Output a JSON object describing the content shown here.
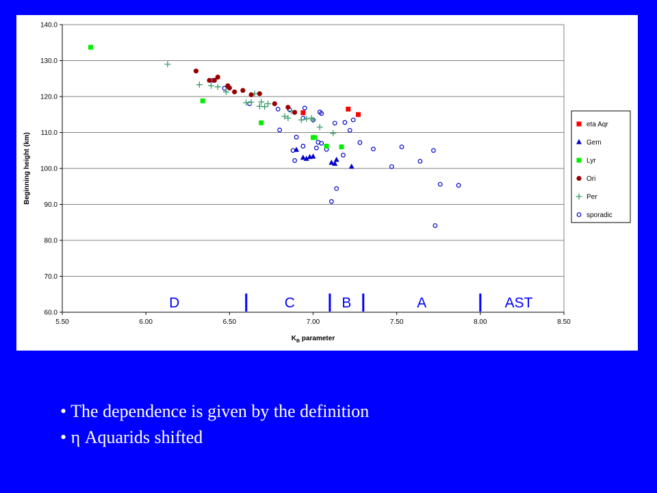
{
  "chart_data": {
    "type": "scatter",
    "title": "",
    "xlabel_main": "K",
    "xlabel_sub": "B",
    "xlabel_rest": " parameter",
    "ylabel": "Beginning height (km)",
    "xlim": [
      5.5,
      8.5
    ],
    "ylim": [
      60.0,
      140.0
    ],
    "x_ticks": [
      "5.50",
      "6.00",
      "6.50",
      "7.00",
      "7.50",
      "8.00",
      "8.50"
    ],
    "y_ticks": [
      "60.0",
      "70.0",
      "80.0",
      "90.0",
      "100.0",
      "110.0",
      "120.0",
      "130.0",
      "140.0"
    ],
    "grid": "horizontal",
    "legend_position": "right",
    "series": [
      {
        "name": "eta Aqr",
        "marker": "square",
        "color": "#ff0000",
        "points": [
          [
            7.21,
            116.5
          ],
          [
            7.27,
            115.0
          ],
          [
            6.94,
            115.5
          ]
        ]
      },
      {
        "name": "Gem",
        "marker": "triangle",
        "color": "#0000cc",
        "points": [
          [
            6.9,
            105.2
          ],
          [
            6.94,
            103.0
          ],
          [
            6.96,
            102.7
          ],
          [
            6.98,
            103.2
          ],
          [
            7.0,
            103.3
          ],
          [
            7.11,
            101.6
          ],
          [
            7.13,
            101.3
          ],
          [
            7.14,
            102.4
          ],
          [
            7.23,
            100.5
          ]
        ]
      },
      {
        "name": "Lyr",
        "marker": "square",
        "color": "#00ee00",
        "points": [
          [
            5.67,
            133.7
          ],
          [
            6.34,
            118.8
          ],
          [
            6.69,
            112.7
          ],
          [
            7.0,
            108.6
          ],
          [
            7.01,
            108.6
          ],
          [
            7.08,
            106.2
          ],
          [
            7.17,
            106.0
          ]
        ]
      },
      {
        "name": "Ori",
        "marker": "circle",
        "color": "#990000",
        "points": [
          [
            6.3,
            127.1
          ],
          [
            6.38,
            124.5
          ],
          [
            6.41,
            124.5
          ],
          [
            6.43,
            125.4
          ],
          [
            6.49,
            123.0
          ],
          [
            6.5,
            122.4
          ],
          [
            6.53,
            121.3
          ],
          [
            6.58,
            121.7
          ],
          [
            6.63,
            120.5
          ],
          [
            6.68,
            120.8
          ],
          [
            6.77,
            118.0
          ],
          [
            6.85,
            117.0
          ],
          [
            6.89,
            115.6
          ]
        ]
      },
      {
        "name": "Per",
        "marker": "plus",
        "color": "#339966",
        "points": [
          [
            6.13,
            129.0
          ],
          [
            6.32,
            123.3
          ],
          [
            6.39,
            123.0
          ],
          [
            6.43,
            122.7
          ],
          [
            6.48,
            121.3
          ],
          [
            6.6,
            118.3
          ],
          [
            6.63,
            118.4
          ],
          [
            6.65,
            120.8
          ],
          [
            6.68,
            117.3
          ],
          [
            6.69,
            118.5
          ],
          [
            6.71,
            117.2
          ],
          [
            6.73,
            118.0
          ],
          [
            6.83,
            114.5
          ],
          [
            6.85,
            114.0
          ],
          [
            6.87,
            116.0
          ],
          [
            6.93,
            113.5
          ],
          [
            6.96,
            113.8
          ],
          [
            6.99,
            114.0
          ],
          [
            7.0,
            113.5
          ],
          [
            7.04,
            111.5
          ],
          [
            7.12,
            109.8
          ]
        ]
      },
      {
        "name": "sporadic",
        "marker": "open-circle",
        "color": "#0000cc",
        "points": [
          [
            6.4,
            124.5
          ],
          [
            6.47,
            122.3
          ],
          [
            6.62,
            118.0
          ],
          [
            6.79,
            116.5
          ],
          [
            6.8,
            110.7
          ],
          [
            6.86,
            116.3
          ],
          [
            6.88,
            105.0
          ],
          [
            6.89,
            102.2
          ],
          [
            6.9,
            108.7
          ],
          [
            6.94,
            106.2
          ],
          [
            6.94,
            114.0
          ],
          [
            6.95,
            116.8
          ],
          [
            7.0,
            113.5
          ],
          [
            7.02,
            105.7
          ],
          [
            7.03,
            107.3
          ],
          [
            7.04,
            115.7
          ],
          [
            7.05,
            107.0
          ],
          [
            7.05,
            115.3
          ],
          [
            7.08,
            105.3
          ],
          [
            7.11,
            90.8
          ],
          [
            7.13,
            112.6
          ],
          [
            7.14,
            94.4
          ],
          [
            7.18,
            103.7
          ],
          [
            7.19,
            112.8
          ],
          [
            7.22,
            110.6
          ],
          [
            7.24,
            113.5
          ],
          [
            7.28,
            107.2
          ],
          [
            7.36,
            105.4
          ],
          [
            7.47,
            100.5
          ],
          [
            7.53,
            106.0
          ],
          [
            7.64,
            102.0
          ],
          [
            7.72,
            105.0
          ],
          [
            7.73,
            84.1
          ],
          [
            7.76,
            95.6
          ],
          [
            7.87,
            95.3
          ]
        ]
      }
    ],
    "annotations": {
      "regions": [
        {
          "label": "D",
          "x": 6.17
        },
        {
          "label": "C",
          "x": 6.86
        },
        {
          "label": "B",
          "x": 7.2
        },
        {
          "label": "A",
          "x": 7.65
        },
        {
          "label": "AST",
          "x": 8.23
        }
      ],
      "boundaries": [
        6.6,
        7.1,
        7.3,
        8.0
      ],
      "region_color": "#0000ff"
    }
  },
  "bullets": [
    {
      "marker": "•",
      "text": "The dependence is given by the definition"
    },
    {
      "marker": "•",
      "text": "η Aquarids shifted"
    }
  ],
  "colors": {
    "background": "#0000ff",
    "panel": "#ffffff",
    "plot_area": "#ffffff",
    "gridline": "#808080"
  }
}
